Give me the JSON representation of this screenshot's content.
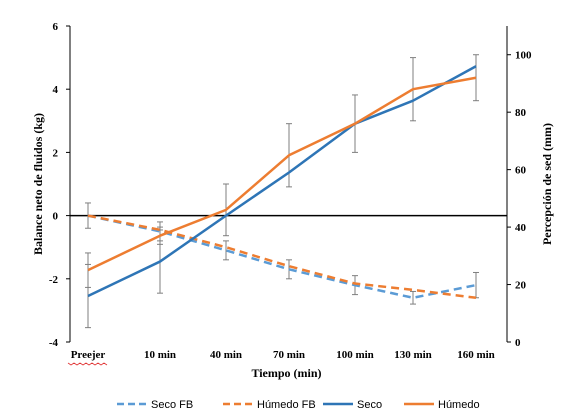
{
  "chart_data": {
    "type": "line",
    "categories": [
      "Preejer",
      "10 min",
      "40 min",
      "70 min",
      "100 min",
      "130 min",
      "160 min"
    ],
    "xlabel": "Tiempo (min)",
    "ylabel_left": "Balance neto de fluidos (kg)",
    "ylabel_right": "Percepción de sed (mm)",
    "ylim_left": [
      -4,
      6
    ],
    "yticks_left": [
      -4,
      -2,
      0,
      2,
      4,
      6
    ],
    "ylim_right": [
      0,
      110
    ],
    "yticks_right": [
      0,
      20,
      40,
      60,
      80,
      100
    ],
    "grid": false,
    "legend_position": "bottom",
    "series": [
      {
        "name": "Seco  FB",
        "axis": "left",
        "style": "dashed",
        "color": "#5B9BD5",
        "values": [
          0.0,
          -0.5,
          -1.1,
          -1.7,
          -2.2,
          -2.6,
          -2.2
        ],
        "error": [
          0.4,
          0.3,
          0.3,
          0.3,
          0.3,
          0.2,
          0.4
        ]
      },
      {
        "name": "Húmedo FB",
        "axis": "left",
        "style": "dashed",
        "color": "#ED7D31",
        "values": [
          0.0,
          -0.45,
          -1.0,
          -1.6,
          -2.15,
          -2.35,
          -2.6
        ],
        "error": [
          0.0,
          0.0,
          0.0,
          0.0,
          0.0,
          0.0,
          0.0
        ]
      },
      {
        "name": "Seco",
        "axis": "right",
        "style": "solid",
        "color": "#2E75B6",
        "values": [
          16,
          28,
          44,
          59,
          76,
          84,
          96
        ],
        "error": [
          11,
          11,
          0,
          0,
          0,
          0,
          0
        ]
      },
      {
        "name": "Húmedo",
        "axis": "right",
        "style": "solid",
        "color": "#ED7D31",
        "values": [
          25,
          37,
          46,
          65,
          76,
          88,
          92
        ],
        "error": [
          6,
          3,
          9,
          11,
          10,
          11,
          8
        ]
      }
    ]
  },
  "legend": [
    {
      "label": "Seco  FB",
      "color": "#5B9BD5",
      "style": "dashed"
    },
    {
      "label": "Húmedo FB",
      "color": "#ED7D31",
      "style": "dashed"
    },
    {
      "label": "Seco",
      "color": "#2E75B6",
      "style": "solid"
    },
    {
      "label": "Húmedo",
      "color": "#ED7D31",
      "style": "solid"
    }
  ]
}
